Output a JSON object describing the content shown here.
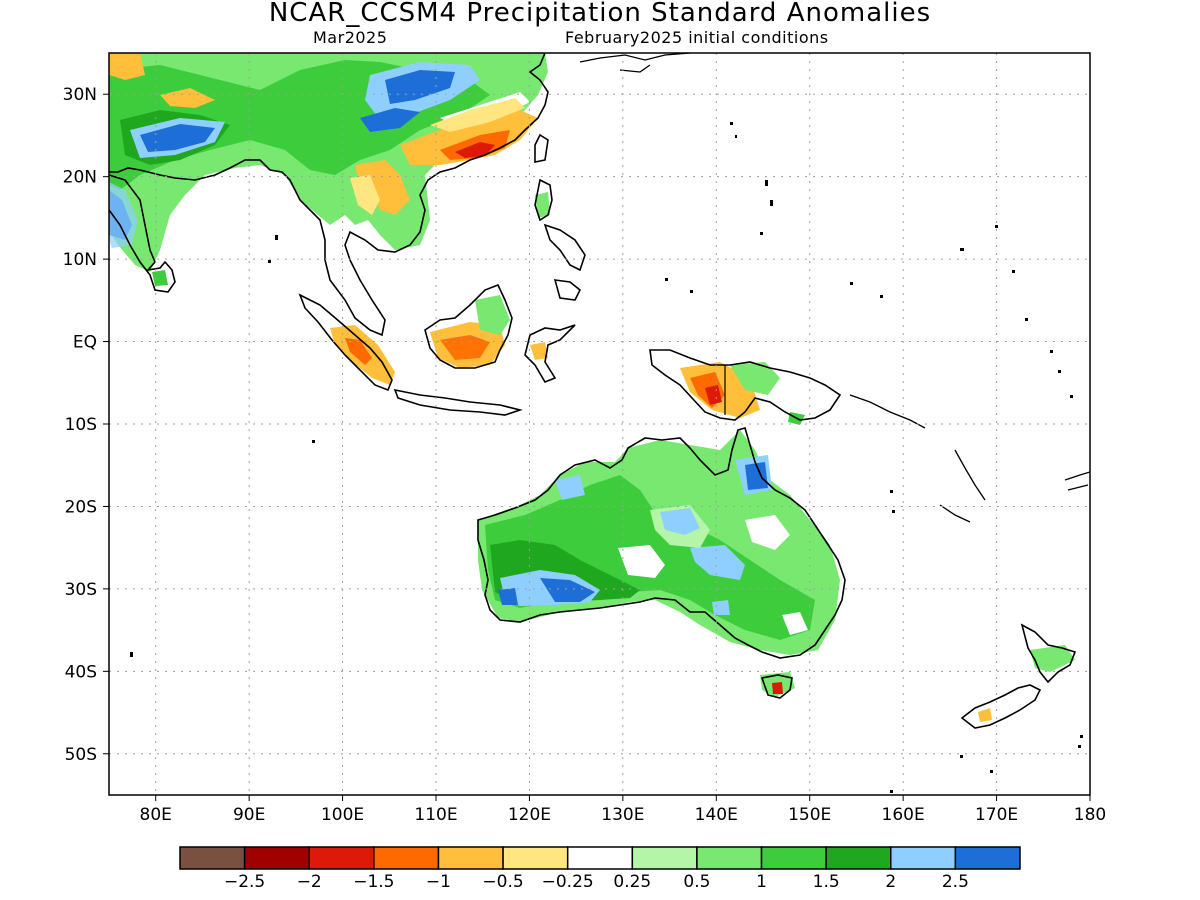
{
  "header": {
    "title": "NCAR_CCSM4 Precipitation Standard Anomalies",
    "valid_month": "Mar2025",
    "init_conditions": "February2025 initial conditions"
  },
  "axes": {
    "lat_range": [
      -55,
      35
    ],
    "lon_range": [
      75,
      180
    ],
    "lat_ticks": [
      {
        "value": 30,
        "label": "30N"
      },
      {
        "value": 20,
        "label": "20N"
      },
      {
        "value": 10,
        "label": "10N"
      },
      {
        "value": 0,
        "label": "EQ"
      },
      {
        "value": -10,
        "label": "10S"
      },
      {
        "value": -20,
        "label": "20S"
      },
      {
        "value": -30,
        "label": "30S"
      },
      {
        "value": -40,
        "label": "40S"
      },
      {
        "value": -50,
        "label": "50S"
      }
    ],
    "lon_ticks": [
      {
        "value": 80,
        "label": "80E"
      },
      {
        "value": 90,
        "label": "90E"
      },
      {
        "value": 100,
        "label": "100E"
      },
      {
        "value": 110,
        "label": "110E"
      },
      {
        "value": 120,
        "label": "120E"
      },
      {
        "value": 130,
        "label": "130E"
      },
      {
        "value": 140,
        "label": "140E"
      },
      {
        "value": 150,
        "label": "150E"
      },
      {
        "value": 160,
        "label": "160E"
      },
      {
        "value": 170,
        "label": "170E"
      },
      {
        "value": 180,
        "label": "180"
      }
    ],
    "grid": "dotted"
  },
  "colorbar": {
    "colors": [
      "#7a5040",
      "#a00000",
      "#dd1a0a",
      "#ff6a00",
      "#ffbf3a",
      "#ffe680",
      "#ffffff",
      "#b4f5a8",
      "#78e870",
      "#3ccc3c",
      "#1fa81f",
      "#8ecfff",
      "#1e6ed8"
    ],
    "labels": [
      "-2.5",
      "-2",
      "-1.5",
      "-1",
      "-0.5",
      "-0.25",
      "0.25",
      "0.5",
      "1",
      "1.5",
      "2",
      "2.5"
    ]
  },
  "map_colors": {
    "land_outline": "#000000",
    "very_dry": "#a00000",
    "dry_strong": "#dd1a0a",
    "dry": "#ff6a00",
    "dry_light": "#ffbf3a",
    "dry_slight": "#ffe680",
    "near_normal": "#ffffff",
    "wet_slight": "#b4f5a8",
    "wet": "#78e870",
    "wet_moderate": "#3ccc3c",
    "wet_strong": "#1fa81f",
    "very_wet": "#8ecfff",
    "extreme_wet": "#1e6ed8"
  }
}
